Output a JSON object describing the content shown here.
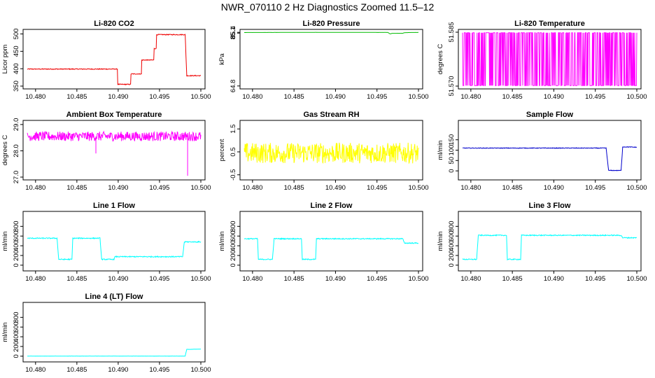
{
  "page": {
    "title": "NWR_070110  2 Hz Diagnostics Zoomed 11.5–12"
  },
  "colors": {
    "red": "#ee0000",
    "green": "#00bb00",
    "magenta": "#ff00ff",
    "yellow": "#ffff00",
    "blue": "#0000cc",
    "cyan": "#00ffff"
  },
  "chart_data": [
    {
      "type": "line",
      "title": "Li-820 CO2",
      "ylabel": "Licor ppm",
      "color": "#ee0000",
      "xlim": [
        10.479,
        10.5
      ],
      "ylim": [
        350,
        505
      ],
      "xticks": [
        "10.480",
        "10.485",
        "10.490",
        "10.495",
        "10.500"
      ],
      "yticks": [
        "350",
        "400",
        "450",
        "500"
      ],
      "series": [
        {
          "name": "CO2",
          "points": [
            [
              10.479,
              399
            ],
            [
              10.4899,
              399
            ],
            [
              10.4899,
              355
            ],
            [
              10.4915,
              355
            ],
            [
              10.4915,
              385
            ],
            [
              10.4928,
              385
            ],
            [
              10.4928,
              425
            ],
            [
              10.4943,
              425
            ],
            [
              10.4943,
              458
            ],
            [
              10.4946,
              458
            ],
            [
              10.4946,
              498
            ],
            [
              10.4981,
              498
            ],
            [
              10.4983,
              380
            ],
            [
              10.5,
              380
            ]
          ],
          "noise": 1.2,
          "spike": null
        }
      ]
    },
    {
      "type": "line",
      "title": "Li-820 Pressure",
      "ylabel": "kPa",
      "color": "#00bb00",
      "xlim": [
        10.479,
        10.5
      ],
      "ylim": [
        64.75,
        85.45
      ],
      "xticks": [
        "10.480",
        "10.485",
        "10.490",
        "10.495",
        "10.500"
      ],
      "yticks": [
        "64.8",
        "85.1",
        "85.4"
      ],
      "series": [
        {
          "name": "Pressure",
          "points": [
            [
              10.479,
              85.33
            ],
            [
              10.484,
              85.37
            ],
            [
              10.4875,
              85.4
            ],
            [
              10.492,
              85.38
            ],
            [
              10.4963,
              85.36
            ],
            [
              10.4966,
              84.78
            ],
            [
              10.4968,
              85.02
            ],
            [
              10.4981,
              85.04
            ],
            [
              10.4983,
              85.25
            ],
            [
              10.4988,
              85.32
            ],
            [
              10.5,
              85.36
            ]
          ],
          "noise": 0.012,
          "spike": null
        }
      ]
    },
    {
      "type": "line",
      "title": "Li-820 Temperature",
      "ylabel": "degrees C",
      "color": "#ff00ff",
      "xlim": [
        10.479,
        10.5
      ],
      "ylim": [
        51.57,
        51.585
      ],
      "xticks": [
        "10.480",
        "10.485",
        "10.490",
        "10.495",
        "10.500"
      ],
      "yticks": [
        "51.570",
        "51.585"
      ],
      "series": [
        {
          "name": "Temperature",
          "points": [
            [
              10.479,
              51.5785
            ],
            [
              10.5,
              51.5785
            ]
          ],
          "noise": 0.0075,
          "spike": null
        }
      ]
    },
    {
      "type": "line",
      "title": "Ambient Box Temperature",
      "ylabel": "degrees C",
      "color": "#ff00ff",
      "xlim": [
        10.479,
        10.5
      ],
      "ylim": [
        27.0,
        29.05
      ],
      "xticks": [
        "10.480",
        "10.485",
        "10.490",
        "10.495",
        "10.500"
      ],
      "yticks": [
        "27.0",
        "28.0",
        "29.0"
      ],
      "series": [
        {
          "name": "Box Temp",
          "points": [
            [
              10.479,
              28.55
            ],
            [
              10.5,
              28.55
            ]
          ],
          "noise": 0.18,
          "spike": [
            [
              10.4873,
              27.9
            ],
            [
              10.4984,
              27.05
            ]
          ]
        }
      ]
    },
    {
      "type": "line",
      "title": "Gas Stream RH",
      "ylabel": "percent",
      "color": "#ffff00",
      "xlim": [
        10.479,
        10.5
      ],
      "ylim": [
        -0.6,
        1.75
      ],
      "xticks": [
        "10.480",
        "10.485",
        "10.490",
        "10.495",
        "10.500"
      ],
      "yticks": [
        "-0.5",
        "0.5",
        "1.5"
      ],
      "series": [
        {
          "name": "RH",
          "points": [
            [
              10.479,
              0.45
            ],
            [
              10.5,
              0.45
            ]
          ],
          "noise": 0.45,
          "spike": null
        }
      ]
    },
    {
      "type": "line",
      "title": "Sample Flow",
      "ylabel": "ml/min",
      "color": "#0000cc",
      "xlim": [
        10.479,
        10.5
      ],
      "ylim": [
        -30,
        230
      ],
      "xticks": [
        "10.480",
        "10.485",
        "10.490",
        "10.495",
        "10.500"
      ],
      "yticks": [
        "0",
        "50",
        "100",
        "150"
      ],
      "series": [
        {
          "name": "Sample",
          "points": [
            [
              10.479,
              110
            ],
            [
              10.4963,
              110
            ],
            [
              10.4966,
              2
            ],
            [
              10.4981,
              2
            ],
            [
              10.4983,
              116
            ],
            [
              10.5,
              114
            ]
          ],
          "noise": 1.5,
          "spike": null
        }
      ]
    },
    {
      "type": "line",
      "title": "Line 1 Flow",
      "ylabel": "ml/min",
      "color": "#00ffff",
      "xlim": [
        10.479,
        10.5
      ],
      "ylim": [
        -60,
        1050
      ],
      "xticks": [
        "10.480",
        "10.485",
        "10.490",
        "10.495",
        "10.500"
      ],
      "yticks": [
        "0",
        "200",
        "400",
        "600",
        "800"
      ],
      "series": [
        {
          "name": "Line 1",
          "points": [
            [
              10.479,
              555
            ],
            [
              10.4826,
              555
            ],
            [
              10.4828,
              120
            ],
            [
              10.4844,
              120
            ],
            [
              10.4845,
              555
            ],
            [
              10.4878,
              555
            ],
            [
              10.488,
              120
            ],
            [
              10.4895,
              120
            ],
            [
              10.4896,
              175
            ],
            [
              10.4978,
              175
            ],
            [
              10.498,
              480
            ],
            [
              10.5,
              480
            ]
          ],
          "noise": 10,
          "spike": null
        }
      ]
    },
    {
      "type": "line",
      "title": "Line 2 Flow",
      "ylabel": "ml/min",
      "color": "#00ffff",
      "xlim": [
        10.479,
        10.5
      ],
      "ylim": [
        -60,
        1050
      ],
      "xticks": [
        "10.480",
        "10.485",
        "10.490",
        "10.495",
        "10.500"
      ],
      "yticks": [
        "0",
        "200",
        "400",
        "600",
        "800"
      ],
      "series": [
        {
          "name": "Line 2",
          "points": [
            [
              10.479,
              545
            ],
            [
              10.4806,
              545
            ],
            [
              10.4807,
              120
            ],
            [
              10.4824,
              120
            ],
            [
              10.4826,
              545
            ],
            [
              10.4859,
              545
            ],
            [
              10.486,
              120
            ],
            [
              10.4876,
              120
            ],
            [
              10.4877,
              545
            ],
            [
              10.4981,
              545
            ],
            [
              10.4983,
              455
            ],
            [
              10.5,
              455
            ]
          ],
          "noise": 10,
          "spike": null
        }
      ]
    },
    {
      "type": "line",
      "title": "Line 3 Flow",
      "ylabel": "ml/min",
      "color": "#00ffff",
      "xlim": [
        10.479,
        10.5
      ],
      "ylim": [
        -60,
        1050
      ],
      "xticks": [
        "10.480",
        "10.485",
        "10.490",
        "10.495",
        "10.500"
      ],
      "yticks": [
        "0",
        "200",
        "400",
        "600",
        "800"
      ],
      "series": [
        {
          "name": "Line 3",
          "points": [
            [
              10.479,
              120
            ],
            [
              10.4807,
              120
            ],
            [
              10.4809,
              615
            ],
            [
              10.4843,
              615
            ],
            [
              10.4844,
              120
            ],
            [
              10.486,
              120
            ],
            [
              10.4861,
              615
            ],
            [
              10.4981,
              615
            ],
            [
              10.4983,
              565
            ],
            [
              10.5,
              565
            ]
          ],
          "noise": 10,
          "spike": null
        }
      ]
    },
    {
      "type": "line",
      "title": "Line 4 (LT) Flow",
      "ylabel": "ml/min",
      "color": "#00ffff",
      "xlim": [
        10.479,
        10.5
      ],
      "ylim": [
        -60,
        1050
      ],
      "xticks": [
        "10.480",
        "10.485",
        "10.490",
        "10.495",
        "10.500"
      ],
      "yticks": [
        "0",
        "200",
        "400",
        "600",
        "800"
      ],
      "series": [
        {
          "name": "Line 4",
          "points": [
            [
              10.479,
              2
            ],
            [
              10.4981,
              2
            ],
            [
              10.4983,
              140
            ],
            [
              10.5,
              145
            ]
          ],
          "noise": 2,
          "spike": null
        }
      ]
    }
  ]
}
